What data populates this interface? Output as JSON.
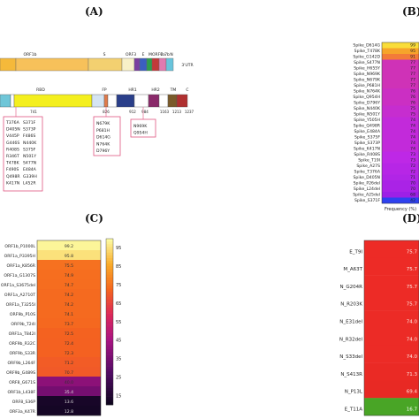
{
  "panels": {
    "A": "(A)",
    "B": "(B)",
    "C": "(C)",
    "D": "(D)"
  },
  "panel_a": {
    "genome_labels": [
      "ORF1b",
      "S",
      "ORF3",
      "E",
      "M",
      "ORF6",
      "7a",
      "7b",
      "N",
      "3'UTR"
    ],
    "spike_labels": [
      "RBD",
      "FP",
      "HR1",
      "HR2",
      "TM",
      "C"
    ],
    "spike_positions": [
      "741",
      "826",
      "912",
      "984",
      "1163",
      "1213",
      "1237"
    ],
    "box1_col1": [
      "T376A",
      "D405N",
      "V445P",
      "G446S",
      "R408S",
      "R346T",
      "T478K",
      "F490S",
      "Q498R",
      "K417N"
    ],
    "box1_col2": [
      "S371F",
      "S373P",
      "F486S",
      "N440K",
      "S375F",
      "N501Y",
      "S477N",
      "E484A",
      "G339H",
      "L452R"
    ],
    "box2": [
      "N679K",
      "P681H",
      "D614G",
      "N764K",
      "D796Y"
    ],
    "box3": [
      "N969K",
      "Q954H"
    ]
  },
  "chart_data": [
    {
      "type": "heatmap",
      "panel": "B",
      "categories": [
        "Spike_D614G",
        "Spike_T478K",
        "Spike_G142D",
        "Spike_S477N",
        "Spike_H655Y",
        "Spike_N969K",
        "Spike_N679K",
        "Spike_P681H",
        "Spike_N764K",
        "Spike_Q954H",
        "Spike_D796Y",
        "Spike_N440K",
        "Spike_N501Y",
        "Spike_Y505H",
        "Spike_Q498R",
        "Spike_E484A",
        "Spike_S375F",
        "Spike_S373P",
        "Spike_K417N",
        "Spike_R408S",
        "Spike_T19I",
        "Spike_A27S",
        "Spike_T376A",
        "Spike_D405N",
        "Spike_P26del",
        "Spike_L24del",
        "Spike_A25del",
        "Spike_S371F"
      ],
      "values": [
        99,
        95,
        91,
        77,
        77,
        77,
        77,
        77,
        76,
        76,
        76,
        75,
        75,
        74,
        74,
        74,
        74,
        74,
        74,
        73,
        73,
        72,
        72,
        71,
        70,
        70,
        68,
        42
      ],
      "xlabel": "Frequency (%)"
    },
    {
      "type": "heatmap",
      "panel": "C",
      "categories": [
        "ORF1b_P1000L",
        "ORF1a_P3395H",
        "ORF1a_K856R",
        "ORF1a_G1307S",
        "ORF1a_S3675del",
        "ORF1a_A2710T",
        "ORF1a_T3255I",
        "ORF9b_P10S",
        "ORF9b_T24I",
        "ORF1a_T842I",
        "ORF9b_R32C",
        "ORF9b_S33R",
        "ORF9b_L264F",
        "ORF9b_G489S",
        "ORF8_G671S",
        "ORF1b_L438F",
        "ORF8_S36P",
        "ORF3a_K47R"
      ],
      "values": [
        99.2,
        95.8,
        75.5,
        74.9,
        74.7,
        74.2,
        74.2,
        74.1,
        73.7,
        72.5,
        72.4,
        72.3,
        71.2,
        70.7,
        40.0,
        35.4,
        13.6,
        12.8
      ],
      "xlabel": "Frequency (%)",
      "colorbar_ticks": [
        95,
        85,
        75,
        65,
        55,
        45,
        35,
        25,
        15
      ]
    },
    {
      "type": "heatmap",
      "panel": "D",
      "categories": [
        "E_T9I",
        "M_A63T",
        "N_G204R",
        "N_R203K",
        "N_E31del",
        "N_R32del",
        "N_S33del",
        "N_S413R",
        "N_P13L",
        "E_T11A"
      ],
      "values": [
        75.7,
        75.7,
        75.7,
        75.7,
        74.0,
        74.0,
        74.0,
        71.3,
        69.4,
        16.7
      ],
      "xlabel": "Frequency (%)"
    }
  ]
}
